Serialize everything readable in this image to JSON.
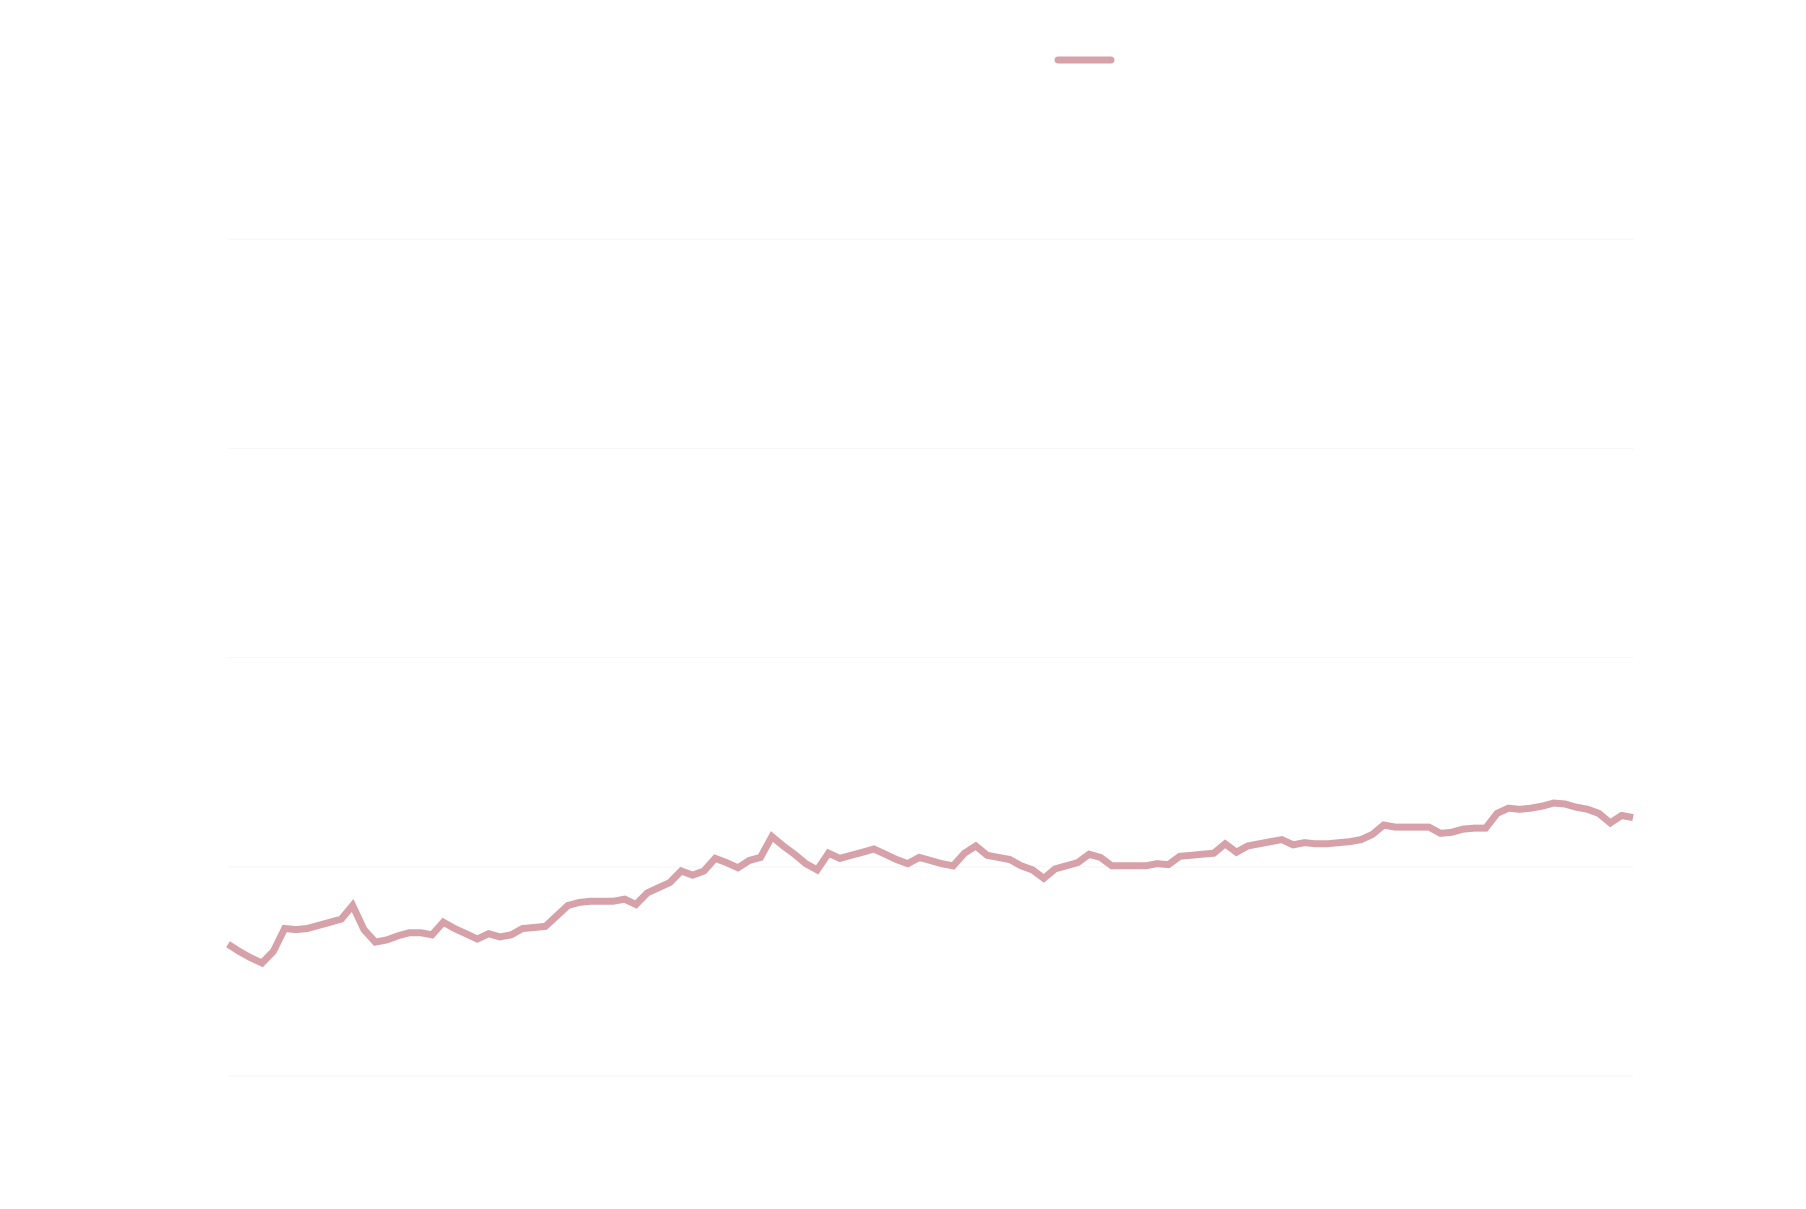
{
  "chart_data": {
    "type": "line",
    "title": "",
    "xlabel": "",
    "ylabel": "",
    "grid": true,
    "legend_position": "top-center",
    "ylim": [
      0,
      100
    ],
    "series": [
      {
        "color": "#d6a1a9",
        "values": [
          12.6,
          11.9,
          11.3,
          10.8,
          11.9,
          14.1,
          14.0,
          14.1,
          14.4,
          14.7,
          15.0,
          16.3,
          14.0,
          12.8,
          13.0,
          13.4,
          13.7,
          13.7,
          13.5,
          14.7,
          14.1,
          13.6,
          13.1,
          13.6,
          13.3,
          13.5,
          14.1,
          14.2,
          14.3,
          15.3,
          16.3,
          16.6,
          16.7,
          16.7,
          16.7,
          16.9,
          16.4,
          17.5,
          18.0,
          18.5,
          19.6,
          19.2,
          19.6,
          20.8,
          20.4,
          19.9,
          20.6,
          20.9,
          22.9,
          22.0,
          21.2,
          20.3,
          19.7,
          21.3,
          20.8,
          21.1,
          21.4,
          21.7,
          21.2,
          20.7,
          20.3,
          20.9,
          20.6,
          20.3,
          20.1,
          21.3,
          22.0,
          21.1,
          20.9,
          20.7,
          20.1,
          19.7,
          18.9,
          19.8,
          20.1,
          20.4,
          21.2,
          20.9,
          20.1,
          20.1,
          20.1,
          20.1,
          20.3,
          20.2,
          21.0,
          21.1,
          21.2,
          21.3,
          22.2,
          21.4,
          22.0,
          22.2,
          22.4,
          22.6,
          22.1,
          22.3,
          22.2,
          22.2,
          22.3,
          22.4,
          22.6,
          23.1,
          24.0,
          23.8,
          23.8,
          23.8,
          23.8,
          23.2,
          23.3,
          23.6,
          23.7,
          23.7,
          25.1,
          25.6,
          25.5,
          25.6,
          25.8,
          26.1,
          26.0,
          25.7,
          25.5,
          25.1,
          24.2,
          24.9,
          24.7
        ]
      }
    ]
  }
}
